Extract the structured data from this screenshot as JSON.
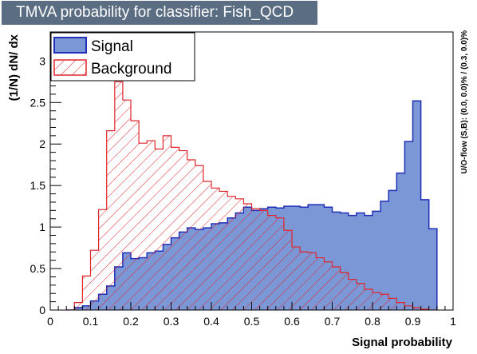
{
  "title": "TMVA probability for classifier: Fish_QCD",
  "colors": {
    "title_bg": "#5a6d82",
    "signal_fill": "#7b97d6",
    "signal_line": "#1f2fb8",
    "background_line": "#e0252b"
  },
  "side_note": "U/O-flow (S,B): (0.0, 0.0)% / (0.3, 0.0)%",
  "chart_data": {
    "type": "histogram",
    "xlabel": "Signal probability",
    "ylabel": "(1/N) dN/ dx",
    "xlim": [
      0,
      1
    ],
    "ylim": [
      0,
      3.35
    ],
    "bin_width": 0.02,
    "x_ticks": [
      0,
      0.1,
      0.2,
      0.3,
      0.4,
      0.5,
      0.6,
      0.7,
      0.8,
      0.9,
      1
    ],
    "x_tick_labels": [
      "0",
      "0.1",
      "0.2",
      "0.3",
      "0.4",
      "0.5",
      "0.6",
      "0.7",
      "0.8",
      "0.9",
      "1"
    ],
    "y_ticks": [
      0,
      0.5,
      1,
      1.5,
      2,
      2.5,
      3
    ],
    "y_tick_labels": [
      "0",
      "0.5",
      "1",
      "1.5",
      "2",
      "2.5",
      "3"
    ],
    "legend_position": "top-left",
    "grid": false,
    "series": [
      {
        "name": "Signal",
        "style": "filled",
        "bin_edges_start": 0.04,
        "values": [
          0,
          0.03,
          0.05,
          0.11,
          0.19,
          0.29,
          0.52,
          0.69,
          0.62,
          0.63,
          0.69,
          0.71,
          0.79,
          0.87,
          0.94,
          0.99,
          0.97,
          0.99,
          1.04,
          1.05,
          1.11,
          1.17,
          1.24,
          1.2,
          1.22,
          1.24,
          1.23,
          1.25,
          1.25,
          1.24,
          1.27,
          1.27,
          1.24,
          1.18,
          1.17,
          1.14,
          1.17,
          1.14,
          1.19,
          1.31,
          1.44,
          1.65,
          2.03,
          2.52,
          1.33,
          0.98
        ]
      },
      {
        "name": "Background",
        "style": "hatched",
        "bin_edges_start": 0.04,
        "values": [
          0,
          0.09,
          0.41,
          0.72,
          1.21,
          2.16,
          2.75,
          2.53,
          2.28,
          2.01,
          2.04,
          1.94,
          2.1,
          1.96,
          1.92,
          1.81,
          1.74,
          1.55,
          1.47,
          1.43,
          1.37,
          1.34,
          1.28,
          1.22,
          1.2,
          1.14,
          1.11,
          0.96,
          0.76,
          0.7,
          0.69,
          0.63,
          0.58,
          0.52,
          0.45,
          0.37,
          0.32,
          0.25,
          0.21,
          0.19,
          0.14,
          0.09,
          0.05,
          0.03,
          0.01,
          0
        ]
      }
    ]
  }
}
